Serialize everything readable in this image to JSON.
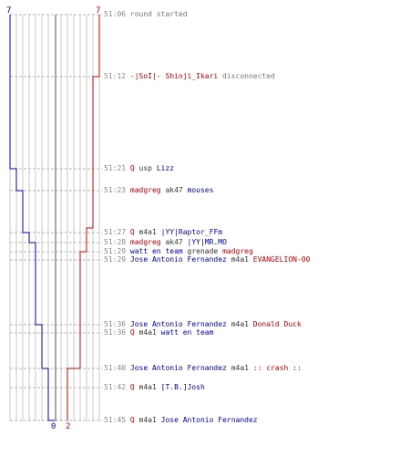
{
  "colors": {
    "ct": "#0000aa",
    "t": "#cc0000",
    "grid": "#c8c8c8",
    "dash": "#b4b4b4",
    "center": "#707070",
    "time": "#888888"
  },
  "score": {
    "ct_start": "7",
    "t_start": "7",
    "ct_end": "0",
    "t_end": "2"
  },
  "events": [
    {
      "time": "51:06",
      "parts": [
        {
          "text": "round started",
          "team": "note"
        }
      ]
    },
    {
      "time": "51:12",
      "parts": [
        {
          "text": "-|SoI|- Shinji_Ikari",
          "team": "t"
        },
        {
          "text": " disconnected",
          "team": "note"
        }
      ]
    },
    {
      "time": "51:21",
      "parts": [
        {
          "text": "Q",
          "team": "t"
        },
        {
          "text": " usp ",
          "team": "sep"
        },
        {
          "text": "Lizz",
          "team": "ct"
        }
      ]
    },
    {
      "time": "51:23",
      "parts": [
        {
          "text": "madgreg",
          "team": "t"
        },
        {
          "text": " ak47 ",
          "team": "sep"
        },
        {
          "text": "mouses",
          "team": "ct"
        }
      ]
    },
    {
      "time": "51:27",
      "parts": [
        {
          "text": "Q",
          "team": "t"
        },
        {
          "text": " m4a1 ",
          "team": "sep"
        },
        {
          "text": "|YY|Raptor_FFm",
          "team": "ct"
        }
      ]
    },
    {
      "time": "51:28",
      "parts": [
        {
          "text": "madgreg",
          "team": "t"
        },
        {
          "text": " ak47 ",
          "team": "sep"
        },
        {
          "text": "|YY|MR.MO",
          "team": "ct"
        }
      ]
    },
    {
      "time": "51:29",
      "parts": [
        {
          "text": "watt en team",
          "team": "ct"
        },
        {
          "text": " grenade ",
          "team": "sep"
        },
        {
          "text": "madgreg",
          "team": "t"
        }
      ]
    },
    {
      "time": "51:29",
      "parts": [
        {
          "text": "Jose Antonio Fernandez",
          "team": "ct"
        },
        {
          "text": " m4a1 ",
          "team": "sep"
        },
        {
          "text": "EVANGELION-00",
          "team": "t"
        }
      ]
    },
    {
      "time": "51:36",
      "parts": [
        {
          "text": "Jose Antonio Fernandez",
          "team": "ct"
        },
        {
          "text": " m4a1 ",
          "team": "sep"
        },
        {
          "text": "Donald Duck",
          "team": "t"
        }
      ]
    },
    {
      "time": "51:36",
      "parts": [
        {
          "text": "Q",
          "team": "t"
        },
        {
          "text": " m4a1 ",
          "team": "sep"
        },
        {
          "text": "watt en team",
          "team": "ct"
        }
      ]
    },
    {
      "time": "51:40",
      "parts": [
        {
          "text": "Jose Antonio Fernandez",
          "team": "ct"
        },
        {
          "text": " m4a1 ",
          "team": "sep"
        },
        {
          "text": ":: crash ::",
          "team": "t"
        }
      ]
    },
    {
      "time": "51:42",
      "parts": [
        {
          "text": "Q",
          "team": "t"
        },
        {
          "text": " m4a1 ",
          "team": "sep"
        },
        {
          "text": "[T.B.]Josh",
          "team": "ct"
        }
      ]
    },
    {
      "time": "51:45",
      "parts": [
        {
          "text": "Q",
          "team": "t"
        },
        {
          "text": " m4a1 ",
          "team": "sep"
        },
        {
          "text": "Jose Antonio Fernandez",
          "team": "ct"
        }
      ]
    }
  ]
}
